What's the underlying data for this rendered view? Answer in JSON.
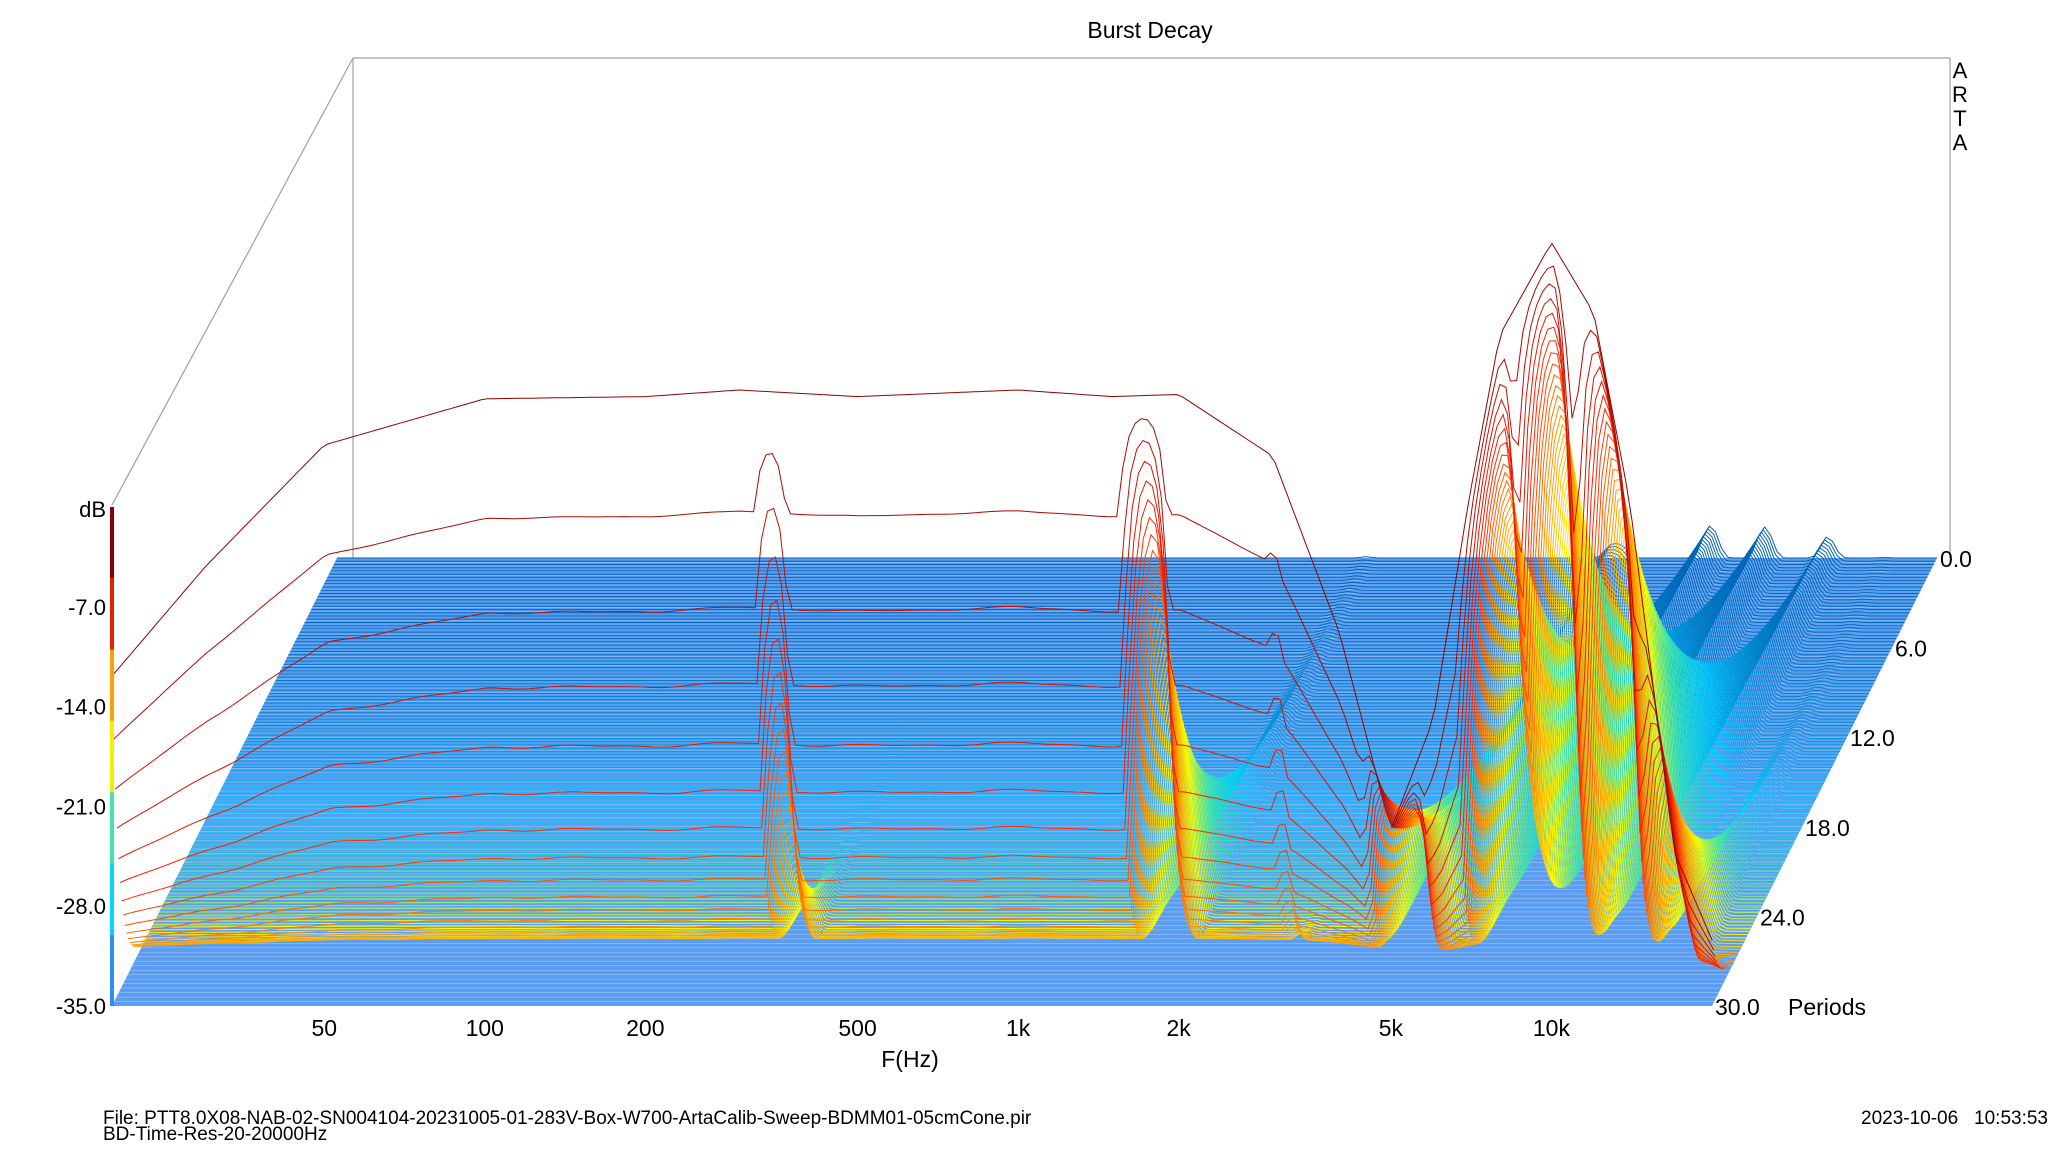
{
  "chart_data": {
    "type": "waterfall-3d",
    "title": "Burst Decay",
    "watermark": "ARTA",
    "xlabel": "F(Hz)",
    "x_scale": "log",
    "xlim": [
      20,
      20000
    ],
    "x_ticks": [
      50,
      100,
      200,
      500,
      1000,
      2000,
      5000,
      10000
    ],
    "x_tick_labels": [
      "50",
      "100",
      "200",
      "500",
      "1k",
      "2k",
      "5k",
      "10k"
    ],
    "zlabel": "dB",
    "zlim": [
      -35.0,
      0.0
    ],
    "z_ticks": [
      -7.0,
      -14.0,
      -21.0,
      -28.0,
      -35.0
    ],
    "z_tick_labels": [
      "-7.0",
      "-14.0",
      "-21.0",
      "-28.0",
      "-35.0"
    ],
    "ylabel": "Periods",
    "ylim": [
      0.0,
      30.0
    ],
    "y_ticks": [
      0.0,
      6.0,
      12.0,
      18.0,
      24.0,
      30.0
    ],
    "y_tick_labels": [
      "0.0",
      "6.0",
      "12.0",
      "18.0",
      "24.0",
      "30.0"
    ],
    "colormap": [
      "#0055aa",
      "#00c8ff",
      "#46e6a0",
      "#ffff00",
      "#ffa000",
      "#ff2000",
      "#8b0000"
    ],
    "colorbar_colors": [
      "#2a8cff",
      "#00d8ff",
      "#44e0b0",
      "#f0f000",
      "#ffa000",
      "#e02000",
      "#8b0000"
    ],
    "floor_color": "#5b9df2",
    "slices": 140,
    "initial_response_db": [
      [
        20,
        -20
      ],
      [
        30,
        -15
      ],
      [
        50,
        -9.5
      ],
      [
        100,
        -7.4
      ],
      [
        200,
        -7.3
      ],
      [
        300,
        -7.0
      ],
      [
        500,
        -7.3
      ],
      [
        1000,
        -7.0
      ],
      [
        1500,
        -7.3
      ],
      [
        2000,
        -7.2
      ],
      [
        3000,
        -10
      ],
      [
        4000,
        -18
      ],
      [
        5000,
        -27
      ],
      [
        6000,
        -22
      ],
      [
        7000,
        -12
      ],
      [
        8000,
        -4.5
      ],
      [
        10000,
        -0.3
      ],
      [
        12000,
        -3.5
      ],
      [
        14000,
        -12
      ],
      [
        17000,
        -28
      ],
      [
        20000,
        -32
      ]
    ],
    "decay_ridges": [
      {
        "freq_hz": 340,
        "decay_periods": 4.5
      },
      {
        "freq_hz": 750,
        "decay_periods": 1.5
      },
      {
        "freq_hz": 1700,
        "decay_periods": 11
      },
      {
        "freq_hz": 3000,
        "decay_periods": 2.5
      },
      {
        "freq_hz": 5000,
        "decay_periods": 30
      },
      {
        "freq_hz": 7500,
        "decay_periods": 24
      },
      {
        "freq_hz": 9500,
        "decay_periods": 22
      },
      {
        "freq_hz": 12500,
        "decay_periods": 20
      },
      {
        "freq_hz": 16000,
        "decay_periods": 11
      }
    ]
  },
  "footer": {
    "file": "File: PTT8.0X08-NAB-02-SN004104-20231005-01-283V-Box-W700-ArtaCalib-Sweep-BDMM01-05cmCone.pir",
    "settings": "BD-Time-Res-20-20000Hz",
    "datetime": "2023-10-06   10:53:53"
  }
}
